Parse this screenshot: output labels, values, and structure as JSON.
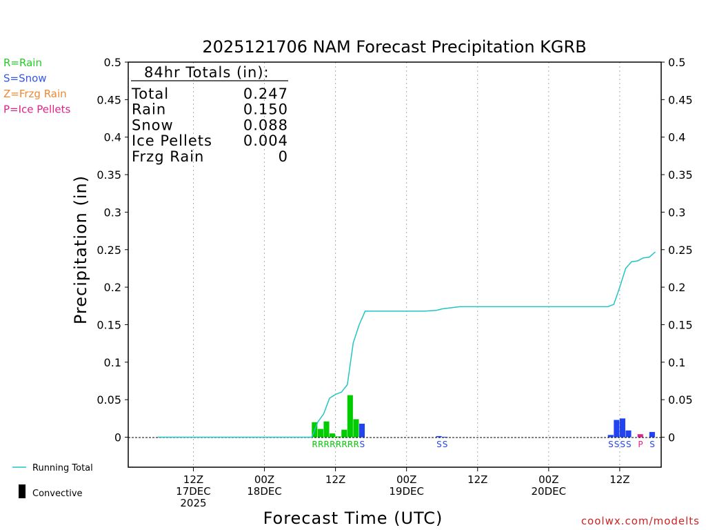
{
  "chart_data": {
    "type": "bar",
    "title": "2025121706 NAM Forecast Precipitation KGRB",
    "xlabel": "Forecast Time (UTC)",
    "ylabel": "Precipitation (in)",
    "ylim": [
      -0.04,
      0.5
    ],
    "yticks": [
      "0",
      "0.05",
      "0.1",
      "0.15",
      "0.2",
      "0.25",
      "0.3",
      "0.35",
      "0.4",
      "0.45",
      "0.5"
    ],
    "xlim_hours": [
      -5,
      85
    ],
    "xticks": [
      {
        "hour": 6,
        "l1": "12Z",
        "l2": "17DEC",
        "l3": "2025"
      },
      {
        "hour": 18,
        "l1": "00Z",
        "l2": "18DEC",
        "l3": ""
      },
      {
        "hour": 30,
        "l1": "12Z",
        "l2": "",
        "l3": ""
      },
      {
        "hour": 42,
        "l1": "00Z",
        "l2": "19DEC",
        "l3": ""
      },
      {
        "hour": 54,
        "l1": "12Z",
        "l2": "",
        "l3": ""
      },
      {
        "hour": 66,
        "l1": "00Z",
        "l2": "20DEC",
        "l3": ""
      },
      {
        "hour": 78,
        "l1": "12Z",
        "l2": "",
        "l3": ""
      }
    ],
    "grid": "vertical dotted",
    "legend_top_left": [
      {
        "text": "R=Rain",
        "color": "#22cc22"
      },
      {
        "text": "S=Snow",
        "color": "#3355ee"
      },
      {
        "text": "Z=Frzg Rain",
        "color": "#ee8833"
      },
      {
        "text": "P=Ice Pellets",
        "color": "#dd2288"
      }
    ],
    "legend_bottom_left": {
      "running_total": "Running Total",
      "convective": "Convective"
    },
    "totals": {
      "heading": "84hr Totals (in):",
      "rows": [
        {
          "label": "Total",
          "value": "0.247"
        },
        {
          "label": "Rain",
          "value": "0.150"
        },
        {
          "label": "Snow",
          "value": "0.088"
        },
        {
          "label": "Ice Pellets",
          "value": "0.004"
        },
        {
          "label": "Frzg Rain",
          "value": "0"
        }
      ]
    },
    "bars": [
      {
        "hour": 27,
        "value": 0.02,
        "type": "R"
      },
      {
        "hour": 28,
        "value": 0.011,
        "type": "R"
      },
      {
        "hour": 29,
        "value": 0.021,
        "type": "R"
      },
      {
        "hour": 30,
        "value": 0.005,
        "type": "R"
      },
      {
        "hour": 31,
        "value": 0.001,
        "type": "R"
      },
      {
        "hour": 32,
        "value": 0.01,
        "type": "R"
      },
      {
        "hour": 33,
        "value": 0.056,
        "type": "R"
      },
      {
        "hour": 34,
        "value": 0.024,
        "type": "R"
      },
      {
        "hour": 35,
        "value": 0.018,
        "type": "S"
      },
      {
        "hour": 48,
        "value": 0.0015,
        "type": "S"
      },
      {
        "hour": 49,
        "value": 0.0005,
        "type": "S"
      },
      {
        "hour": 77,
        "value": 0.003,
        "type": "S"
      },
      {
        "hour": 78,
        "value": 0.023,
        "type": "S"
      },
      {
        "hour": 79,
        "value": 0.025,
        "type": "S"
      },
      {
        "hour": 80,
        "value": 0.009,
        "type": "S"
      },
      {
        "hour": 82,
        "value": 0.004,
        "type": "P"
      },
      {
        "hour": 84,
        "value": 0.007,
        "type": "S"
      }
    ],
    "type_labels": [
      {
        "hour": 27,
        "text": "R",
        "type": "R"
      },
      {
        "hour": 28,
        "text": "R",
        "type": "R"
      },
      {
        "hour": 29,
        "text": "R",
        "type": "R"
      },
      {
        "hour": 30,
        "text": "R",
        "type": "R"
      },
      {
        "hour": 31,
        "text": "R",
        "type": "R"
      },
      {
        "hour": 32,
        "text": "R",
        "type": "R"
      },
      {
        "hour": 33,
        "text": "R",
        "type": "R"
      },
      {
        "hour": 34,
        "text": "R",
        "type": "R"
      },
      {
        "hour": 35,
        "text": "S",
        "type": "S"
      },
      {
        "hour": 48,
        "text": "S",
        "type": "S"
      },
      {
        "hour": 49,
        "text": "S",
        "type": "S"
      },
      {
        "hour": 77,
        "text": "S",
        "type": "S"
      },
      {
        "hour": 78,
        "text": "S",
        "type": "S"
      },
      {
        "hour": 79,
        "text": "S",
        "type": "S"
      },
      {
        "hour": 80,
        "text": "S",
        "type": "S"
      },
      {
        "hour": 82,
        "text": "P",
        "type": "P"
      },
      {
        "hour": 84,
        "text": "S",
        "type": "S"
      }
    ],
    "running_total": [
      {
        "hour": 0,
        "value": 0
      },
      {
        "hour": 26,
        "value": 0
      },
      {
        "hour": 27,
        "value": 0.02
      },
      {
        "hour": 28,
        "value": 0.031
      },
      {
        "hour": 29,
        "value": 0.052
      },
      {
        "hour": 30,
        "value": 0.057
      },
      {
        "hour": 31,
        "value": 0.06
      },
      {
        "hour": 32,
        "value": 0.07
      },
      {
        "hour": 33,
        "value": 0.126
      },
      {
        "hour": 34,
        "value": 0.15
      },
      {
        "hour": 35,
        "value": 0.168
      },
      {
        "hour": 39,
        "value": 0.168
      },
      {
        "hour": 45,
        "value": 0.168
      },
      {
        "hour": 47,
        "value": 0.169
      },
      {
        "hour": 48,
        "value": 0.171
      },
      {
        "hour": 49,
        "value": 0.172
      },
      {
        "hour": 51,
        "value": 0.174
      },
      {
        "hour": 76,
        "value": 0.174
      },
      {
        "hour": 77,
        "value": 0.177
      },
      {
        "hour": 78,
        "value": 0.2
      },
      {
        "hour": 79,
        "value": 0.225
      },
      {
        "hour": 80,
        "value": 0.234
      },
      {
        "hour": 81,
        "value": 0.235
      },
      {
        "hour": 82,
        "value": 0.239
      },
      {
        "hour": 83,
        "value": 0.24
      },
      {
        "hour": 84,
        "value": 0.247
      }
    ],
    "colors": {
      "R": "#00cc00",
      "S": "#2244ee",
      "P": "#dd2288",
      "Z": "#ee8833",
      "running_total": "#22c4c4",
      "grid": "#aaaaaa",
      "axis": "#000000"
    },
    "credit": "coolwx.com/modelts"
  }
}
